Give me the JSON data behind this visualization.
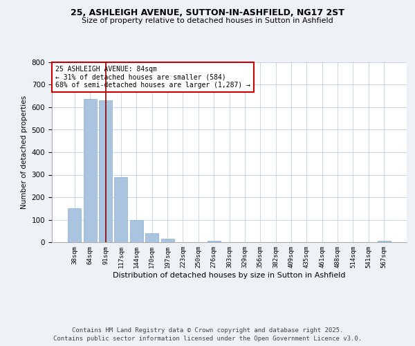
{
  "title1": "25, ASHLEIGH AVENUE, SUTTON-IN-ASHFIELD, NG17 2ST",
  "title2": "Size of property relative to detached houses in Sutton in Ashfield",
  "xlabel": "Distribution of detached houses by size in Sutton in Ashfield",
  "ylabel": "Number of detached properties",
  "categories": [
    "38sqm",
    "64sqm",
    "91sqm",
    "117sqm",
    "144sqm",
    "170sqm",
    "197sqm",
    "223sqm",
    "250sqm",
    "276sqm",
    "303sqm",
    "329sqm",
    "356sqm",
    "382sqm",
    "409sqm",
    "435sqm",
    "461sqm",
    "488sqm",
    "514sqm",
    "541sqm",
    "567sqm"
  ],
  "values": [
    150,
    638,
    630,
    290,
    100,
    40,
    15,
    0,
    0,
    5,
    0,
    0,
    0,
    0,
    0,
    0,
    0,
    0,
    0,
    0,
    5
  ],
  "bar_color": "#aac4e0",
  "bar_edge_color": "#8ab0d0",
  "vline_color": "#8b0000",
  "vline_index": 2,
  "annotation_text": "25 ASHLEIGH AVENUE: 84sqm\n← 31% of detached houses are smaller (584)\n68% of semi-detached houses are larger (1,287) →",
  "annotation_box_color": "#ffffff",
  "annotation_border_color": "#cc0000",
  "ylim": [
    0,
    800
  ],
  "yticks": [
    0,
    100,
    200,
    300,
    400,
    500,
    600,
    700,
    800
  ],
  "footer1": "Contains HM Land Registry data © Crown copyright and database right 2025.",
  "footer2": "Contains public sector information licensed under the Open Government Licence v3.0.",
  "bg_color": "#eef2f7",
  "plot_bg_color": "#ffffff",
  "grid_color": "#c8d8e8"
}
